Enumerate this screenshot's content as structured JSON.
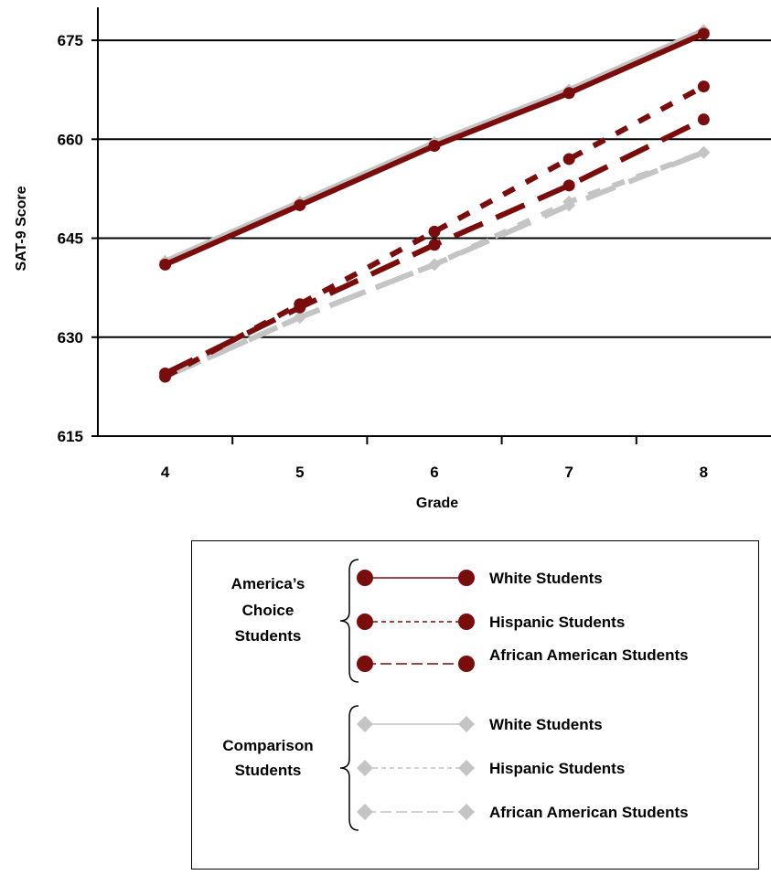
{
  "chart_data": {
    "type": "line",
    "x": [
      4,
      5,
      6,
      7,
      8
    ],
    "xlabel": "Grade",
    "ylabel": "SAT-9 Score",
    "ylim": [
      615,
      680
    ],
    "yticks": [
      615,
      630,
      645,
      660,
      675
    ],
    "grid": "horizontal",
    "legend_position": "bottom",
    "series": [
      {
        "name": "White Students",
        "group": "America's Choice Students",
        "style": "solid",
        "marker": "circle",
        "color": "#7b0c0c",
        "values": [
          641,
          650,
          659,
          667,
          676
        ]
      },
      {
        "name": "Hispanic Students",
        "group": "America's Choice Students",
        "style": "short-dash",
        "marker": "circle",
        "color": "#7b0c0c",
        "values": [
          624,
          635,
          646,
          657,
          668
        ]
      },
      {
        "name": "African American Students",
        "group": "America's Choice Students",
        "style": "long-dash",
        "marker": "circle",
        "color": "#7b0c0c",
        "values": [
          624.5,
          634.5,
          644,
          653,
          663
        ]
      },
      {
        "name": "White Students",
        "group": "Comparison Students",
        "style": "solid",
        "marker": "diamond",
        "color": "#c4c4c4",
        "values": [
          641.5,
          650.5,
          659.5,
          667.5,
          676.5
        ]
      },
      {
        "name": "Hispanic Students",
        "group": "Comparison Students",
        "style": "short-dash",
        "marker": "diamond",
        "color": "#c4c4c4",
        "values": [
          624,
          633,
          641,
          650.5,
          658
        ]
      },
      {
        "name": "African American Students",
        "group": "Comparison Students",
        "style": "long-dash",
        "marker": "diamond",
        "color": "#c4c4c4",
        "values": [
          624,
          633,
          641,
          650,
          658
        ]
      }
    ]
  },
  "legend": {
    "groups": [
      {
        "label_lines": [
          "America’s",
          "Choice",
          "Students"
        ],
        "items": [
          "White Students",
          "Hispanic Students",
          "African American Students"
        ]
      },
      {
        "label_lines": [
          "Comparison",
          "Students"
        ],
        "items": [
          "White Students",
          "Hispanic Students",
          "African American Students"
        ]
      }
    ]
  }
}
